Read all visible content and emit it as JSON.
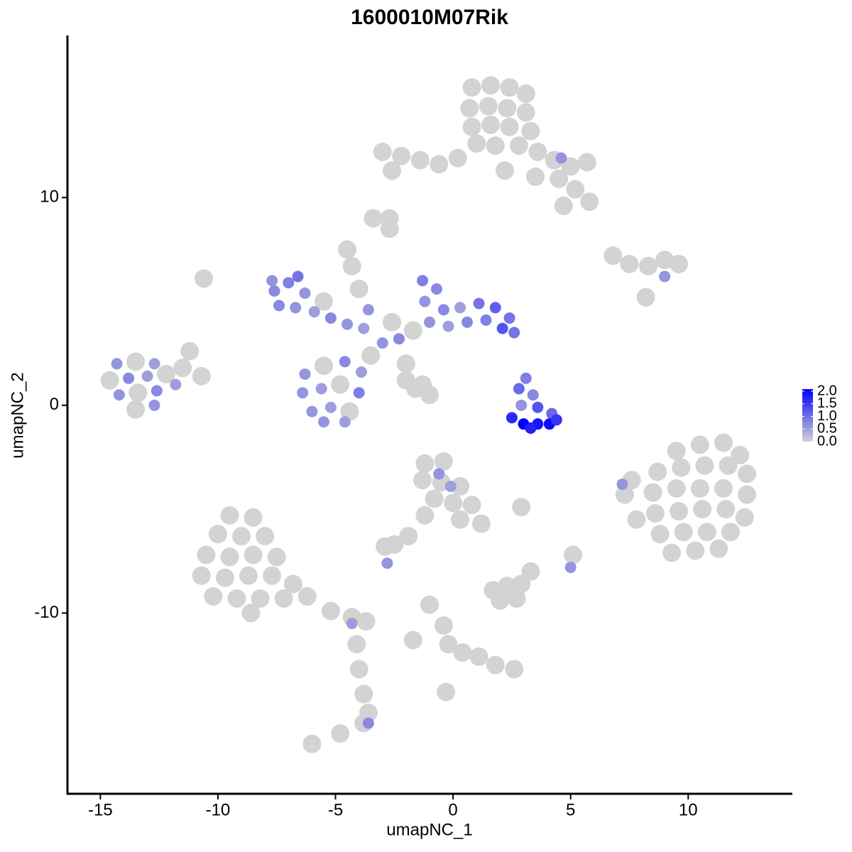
{
  "chart_data": {
    "type": "scatter",
    "title": "1600010M07Rik",
    "xlabel": "umapNC_1",
    "ylabel": "umapNC_2",
    "xlim": [
      -16.4,
      14.4
    ],
    "ylim": [
      -18.7,
      17.8
    ],
    "xticks": [
      -15,
      -10,
      -5,
      0,
      5,
      10
    ],
    "yticks": [
      -10,
      0,
      10
    ],
    "color_low": "#d3d3d3",
    "color_high": "#0000ff",
    "color_lim": [
      0,
      2
    ],
    "color_ticks": [
      {
        "value": 0,
        "label": "0.0"
      },
      0.5,
      {
        "value": 1,
        "label": "1.0"
      },
      1.5,
      {
        "value": 2,
        "label": "2.0"
      }
    ],
    "x": [
      0.8,
      1.6,
      2.4,
      3.1,
      0.7,
      1.5,
      2.3,
      3.1,
      0.8,
      1.6,
      2.4,
      3.3,
      1.0,
      1.8,
      2.8,
      3.6,
      4.3,
      5.0,
      5.7,
      4.5,
      5.2,
      5.8,
      4.7,
      0.2,
      -0.6,
      -1.4,
      -2.2,
      -3.0,
      -2.6,
      2.2,
      3.5,
      -3.4,
      4.6,
      6.8,
      7.5,
      8.3,
      9.0,
      9.6,
      9.0,
      8.2,
      -14.3,
      -13.5,
      -12.7,
      -14.6,
      -13.8,
      -13.0,
      -12.2,
      -11.5,
      -14.2,
      -13.4,
      -12.6,
      -11.8,
      -13.5,
      -12.7,
      -11.2,
      -10.7,
      -7.6,
      -7.0,
      -6.3,
      -7.4,
      -6.7,
      -5.9,
      -5.2,
      -4.5,
      -3.8,
      -7.7,
      -6.6,
      -5.5,
      -6.3,
      -5.5,
      -4.6,
      -3.9,
      -6.4,
      -5.6,
      -4.8,
      -4.0,
      -6.0,
      -5.2,
      -4.4,
      -5.5,
      -4.6,
      -3.0,
      -2.6,
      -2.3,
      -3.5,
      -4.3,
      -4.0,
      -3.6,
      -2.0,
      -1.3,
      -1.6,
      -1.3,
      -0.7,
      -1.2,
      -0.4,
      0.3,
      1.1,
      1.8,
      2.4,
      -1.0,
      -0.2,
      0.6,
      1.4,
      2.1,
      2.6,
      -1.7,
      3.1,
      2.8,
      3.4,
      2.9,
      3.6,
      4.2,
      2.5,
      3.0,
      3.6,
      4.1,
      4.4,
      3.3,
      9.5,
      10.5,
      11.5,
      12.2,
      8.7,
      9.7,
      10.7,
      11.7,
      12.5,
      8.5,
      9.5,
      10.5,
      11.5,
      12.5,
      8.6,
      9.6,
      10.6,
      11.6,
      12.4,
      8.8,
      9.8,
      10.8,
      11.8,
      9.3,
      10.3,
      11.3,
      7.3,
      7.8,
      7.6,
      7.2,
      -9.5,
      -8.5,
      -10.0,
      -9.0,
      -8.0,
      -10.5,
      -9.5,
      -8.5,
      -7.5,
      -10.7,
      -9.7,
      -8.7,
      -7.7,
      -6.8,
      -10.2,
      -9.2,
      -8.2,
      -7.2,
      -6.2,
      -8.6,
      -5.2,
      -4.3,
      -3.7,
      -4.1,
      -4.0,
      -3.8,
      -3.6,
      -3.8,
      -4.8,
      -6.0,
      -4.3,
      -3.6,
      -1.2,
      -0.4,
      -1.3,
      -0.5,
      0.3,
      -0.8,
      0.0,
      0.8,
      0.3,
      1.2,
      -1.2,
      -1.9,
      -2.5,
      -2.9,
      -2.8,
      -0.6,
      -0.1,
      2.9,
      5.1,
      5.0,
      1.7,
      2.3,
      2.9,
      2.0,
      2.7,
      3.3,
      -1.0,
      -0.4,
      -0.2,
      0.4,
      1.1,
      1.8,
      2.6,
      -1.7,
      -0.3,
      -10.6,
      -2.7,
      -2.7,
      -4.5,
      -2.0,
      -1.0
    ],
    "y": [
      15.3,
      15.4,
      15.3,
      15.0,
      14.3,
      14.4,
      14.3,
      14.1,
      13.4,
      13.5,
      13.4,
      13.2,
      12.6,
      12.5,
      12.5,
      12.2,
      11.8,
      11.5,
      11.7,
      10.9,
      10.4,
      9.8,
      9.6,
      11.9,
      11.6,
      11.8,
      12.0,
      12.2,
      11.3,
      11.3,
      11.0,
      9.0,
      11.9,
      7.2,
      6.8,
      6.7,
      7.0,
      6.8,
      6.2,
      5.2,
      2.0,
      2.1,
      2.0,
      1.2,
      1.3,
      1.4,
      1.5,
      1.8,
      0.5,
      0.6,
      0.7,
      1.0,
      -0.2,
      0.0,
      2.6,
      1.4,
      5.5,
      5.9,
      5.4,
      4.8,
      4.7,
      4.5,
      4.2,
      3.9,
      3.7,
      6.0,
      6.2,
      5.0,
      1.5,
      1.9,
      2.1,
      1.6,
      0.6,
      0.8,
      1.0,
      0.6,
      -0.3,
      -0.1,
      -0.3,
      -0.8,
      -0.8,
      3.0,
      4.0,
      3.2,
      2.4,
      6.7,
      5.6,
      4.6,
      2.0,
      1.0,
      0.8,
      6.0,
      5.6,
      5.0,
      4.6,
      4.7,
      4.9,
      4.7,
      4.2,
      4.0,
      3.8,
      4.0,
      4.1,
      3.7,
      3.5,
      3.6,
      1.3,
      0.8,
      0.5,
      0.0,
      -0.1,
      -0.4,
      -0.6,
      -0.9,
      -0.9,
      -0.9,
      -0.7,
      -1.1,
      -2.2,
      -1.9,
      -1.8,
      -2.4,
      -3.2,
      -3.0,
      -2.9,
      -2.9,
      -3.3,
      -4.2,
      -4.0,
      -4.0,
      -4.0,
      -4.3,
      -5.2,
      -5.1,
      -5.0,
      -5.0,
      -5.4,
      -6.2,
      -6.1,
      -6.1,
      -6.1,
      -7.1,
      -7.0,
      -6.9,
      -4.3,
      -5.5,
      -3.6,
      -3.8,
      -5.3,
      -5.4,
      -6.2,
      -6.3,
      -6.3,
      -7.2,
      -7.3,
      -7.2,
      -7.3,
      -8.2,
      -8.3,
      -8.2,
      -8.2,
      -8.6,
      -9.2,
      -9.3,
      -9.3,
      -9.3,
      -9.2,
      -10.0,
      -9.9,
      -10.2,
      -10.4,
      -11.5,
      -12.7,
      -13.9,
      -14.8,
      -15.3,
      -15.8,
      -16.3,
      -10.5,
      -15.3,
      -2.8,
      -2.7,
      -3.6,
      -3.7,
      -3.9,
      -4.5,
      -4.7,
      -4.8,
      -5.5,
      -5.7,
      -5.3,
      -6.3,
      -6.7,
      -6.8,
      -7.6,
      -3.3,
      -3.9,
      -4.9,
      -7.2,
      -7.8,
      -8.9,
      -8.7,
      -8.6,
      -9.4,
      -9.3,
      -8.0,
      -9.6,
      -10.6,
      -11.5,
      -11.9,
      -12.1,
      -12.5,
      -12.7,
      -11.3,
      -13.8,
      6.1,
      9.0,
      8.5,
      7.5,
      1.2,
      0.5
    ],
    "values": [
      0,
      0,
      0,
      0,
      0,
      0,
      0,
      0,
      0,
      0,
      0,
      0,
      0,
      0,
      0,
      0,
      0,
      0,
      0,
      0,
      0,
      0,
      0,
      0,
      0,
      0,
      0,
      0,
      0,
      0,
      0,
      0,
      0.6,
      0,
      0,
      0,
      0,
      0,
      0.6,
      0,
      0.6,
      0,
      0.5,
      0,
      0.7,
      0.5,
      0,
      0,
      0.6,
      0,
      0.7,
      0.5,
      0,
      0.6,
      0,
      0,
      0.7,
      0.8,
      0.6,
      0.7,
      0.6,
      0.5,
      0.7,
      0.6,
      0.5,
      0.6,
      0.9,
      0,
      0.6,
      0,
      0.7,
      0.5,
      0.6,
      0.5,
      0,
      0.8,
      0.6,
      0.5,
      0,
      0.6,
      0.5,
      0.6,
      0,
      0.7,
      0,
      0,
      0,
      0.6,
      0,
      0,
      0,
      0.8,
      0.7,
      0.6,
      0.7,
      0.5,
      0.9,
      1.1,
      0.9,
      0.6,
      0.5,
      0.7,
      0.8,
      1.2,
      0.9,
      0,
      0.8,
      1.0,
      0.7,
      0.6,
      1.2,
      1.0,
      1.6,
      2.0,
      1.8,
      1.9,
      1.5,
      1.7,
      0,
      0,
      0,
      0,
      0,
      0,
      0,
      0,
      0,
      0,
      0,
      0,
      0,
      0,
      0,
      0,
      0,
      0,
      0,
      0,
      0,
      0,
      0,
      0,
      0,
      0,
      0,
      0,
      0,
      0.6,
      0,
      0,
      0,
      0,
      0,
      0,
      0,
      0,
      0,
      0,
      0,
      0,
      0,
      0,
      0,
      0,
      0,
      0,
      0,
      0,
      0,
      0,
      0,
      0,
      0,
      0,
      0,
      0,
      0,
      0,
      0.5,
      0.7,
      0,
      0,
      0,
      0,
      0,
      0,
      0,
      0,
      0,
      0,
      0,
      0,
      0,
      0,
      0.6,
      0.6,
      0.5,
      0,
      0,
      0.6,
      0,
      0,
      0,
      0,
      0,
      0,
      0,
      0,
      0,
      0,
      0,
      0,
      0,
      0,
      0,
      0,
      0,
      0,
      0,
      0,
      0
    ]
  }
}
